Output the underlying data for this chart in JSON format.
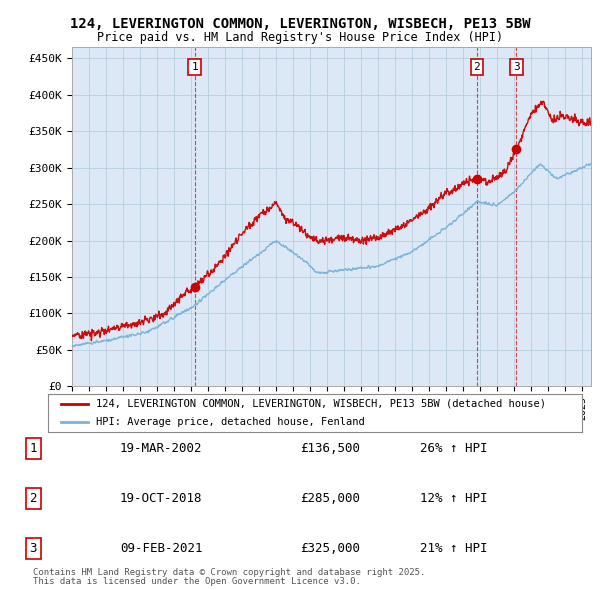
{
  "title_line1": "124, LEVERINGTON COMMON, LEVERINGTON, WISBECH, PE13 5BW",
  "title_line2": "Price paid vs. HM Land Registry's House Price Index (HPI)",
  "ylabel_ticks": [
    "£0",
    "£50K",
    "£100K",
    "£150K",
    "£200K",
    "£250K",
    "£300K",
    "£350K",
    "£400K",
    "£450K"
  ],
  "ytick_values": [
    0,
    50000,
    100000,
    150000,
    200000,
    250000,
    300000,
    350000,
    400000,
    450000
  ],
  "xmin": 1995.0,
  "xmax": 2025.5,
  "ymin": 0,
  "ymax": 465000,
  "hpi_color": "#7ab3d8",
  "price_color": "#cc0000",
  "legend_house_label": "124, LEVERINGTON COMMON, LEVERINGTON, WISBECH, PE13 5BW (detached house)",
  "legend_hpi_label": "HPI: Average price, detached house, Fenland",
  "transactions": [
    {
      "num": 1,
      "date": "19-MAR-2002",
      "price": 136500,
      "price_str": "£136,500",
      "pct": "26%",
      "direction": "↑",
      "year": 2002.21
    },
    {
      "num": 2,
      "date": "19-OCT-2018",
      "price": 285000,
      "price_str": "£285,000",
      "pct": "12%",
      "direction": "↑",
      "year": 2018.8
    },
    {
      "num": 3,
      "date": "09-FEB-2021",
      "price": 325000,
      "price_str": "£325,000",
      "pct": "21%",
      "direction": "↑",
      "year": 2021.12
    }
  ],
  "footer_line1": "Contains HM Land Registry data © Crown copyright and database right 2025.",
  "footer_line2": "This data is licensed under the Open Government Licence v3.0.",
  "plot_bg_color": "#dce8f5",
  "grid_color": "#b8cfe0",
  "fig_bg_color": "#ffffff"
}
